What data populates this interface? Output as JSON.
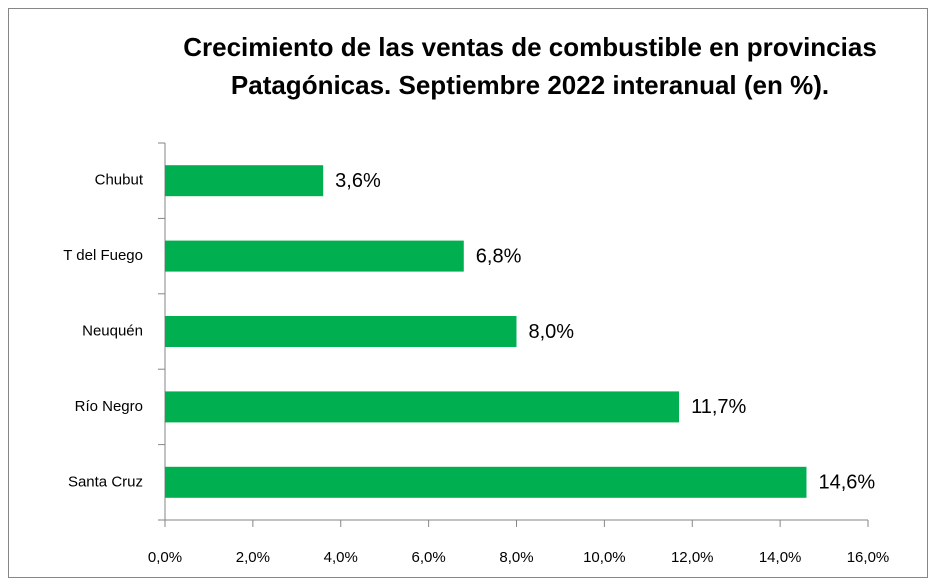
{
  "chart_data": {
    "type": "bar",
    "orientation": "horizontal",
    "title": "Crecimiento de las ventas de combustible en provincias Patagónicas. Septiembre 2022 interanual (en %).",
    "categories": [
      "Chubut",
      "T del Fuego",
      "Neuquén",
      "Río Negro",
      "Santa Cruz"
    ],
    "values": [
      3.6,
      6.8,
      8.0,
      11.7,
      14.6
    ],
    "value_labels": [
      "3,6%",
      "6,8%",
      "8,0%",
      "11,7%",
      "14,6%"
    ],
    "color": "#00b050",
    "xlim": [
      0,
      16
    ],
    "xticks": [
      {
        "value": 0,
        "label": "0,0%"
      },
      {
        "value": 2,
        "label": "2,0%"
      },
      {
        "value": 4,
        "label": "4,0%"
      },
      {
        "value": 6,
        "label": "6,0%"
      },
      {
        "value": 8,
        "label": "8,0%"
      },
      {
        "value": 10,
        "label": "10,0%"
      },
      {
        "value": 12,
        "label": "12,0%"
      },
      {
        "value": 14,
        "label": "14,0%"
      },
      {
        "value": 16,
        "label": "16,0%"
      }
    ],
    "grid": false
  }
}
